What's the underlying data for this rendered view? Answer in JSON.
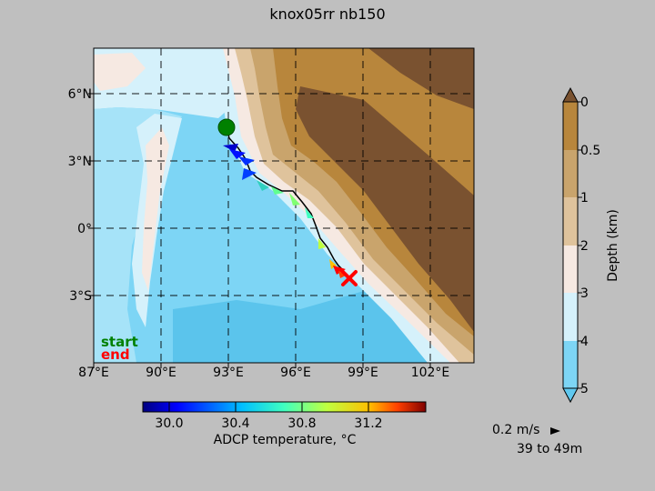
{
  "title": "knox05rr nb150",
  "map": {
    "lon_ticks": [
      "87°E",
      "90°E",
      "93°E",
      "96°E",
      "99°E",
      "102°E"
    ],
    "lat_ticks": [
      "6°N",
      "3°N",
      "0°",
      "3°S"
    ],
    "legend": {
      "start": "start",
      "end": "end",
      "start_color": "#008000",
      "end_color": "#ff0000"
    },
    "track_start": {
      "lon": 92.9,
      "lat": 4.5
    },
    "track_end": {
      "lon": 98.4,
      "lat": -2.2
    }
  },
  "depth_colorbar": {
    "label": "Depth (km)",
    "ticks": [
      "0",
      "0.5",
      "1",
      "2",
      "3",
      "4",
      "5"
    ],
    "colors": [
      "#b8863c",
      "#c9a46c",
      "#dfc39c",
      "#f6e9e2",
      "#d5f1fb",
      "#a6e3f8",
      "#7dd5f5"
    ],
    "extend_top_color": "#7a5230",
    "extend_bottom_color": "#60c8ef"
  },
  "temp_colorbar": {
    "label": "ADCP temperature, °C",
    "ticks": [
      "30.0",
      "30.4",
      "30.8",
      "31.2"
    ]
  },
  "vector_key": {
    "speed": "0.2 m/s",
    "depth_range": "39 to 49m"
  }
}
